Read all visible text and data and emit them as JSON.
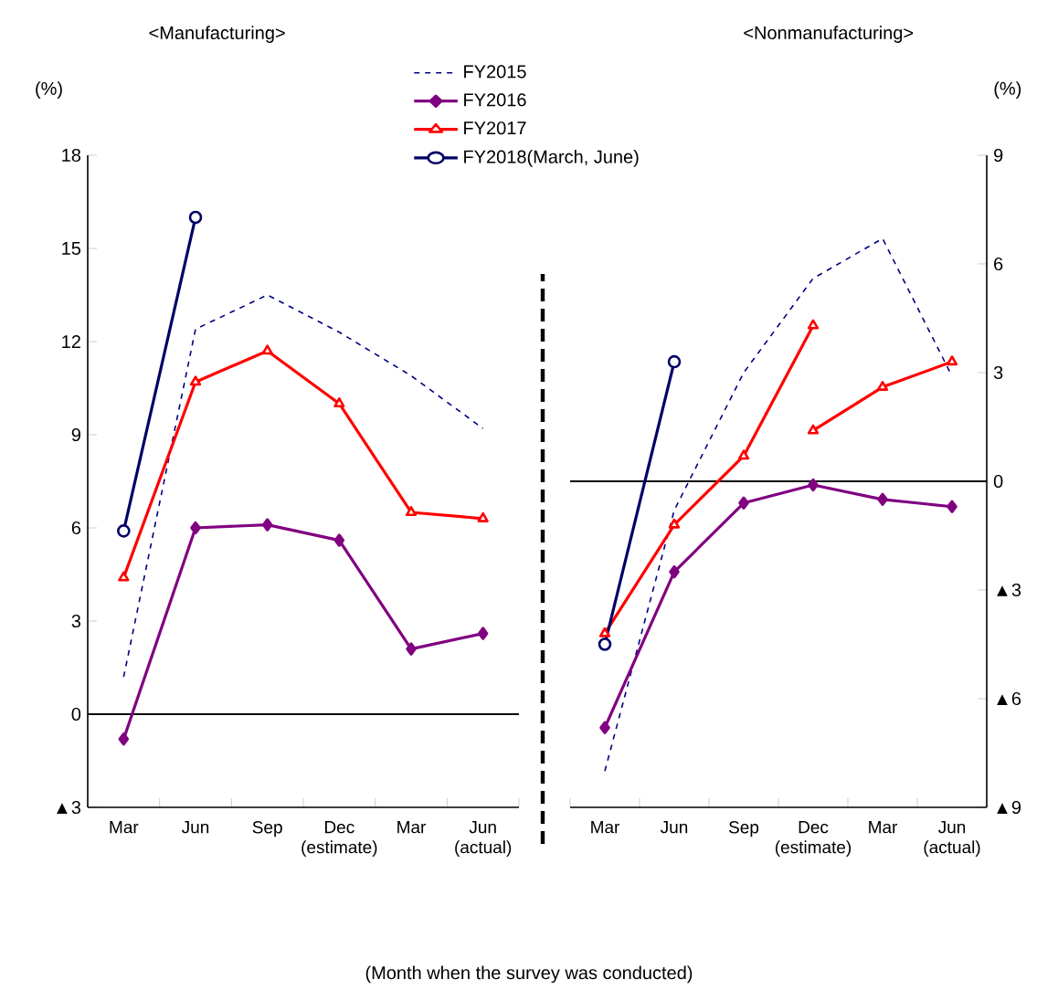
{
  "chart_data": [
    {
      "type": "line",
      "title": "<Manufacturing>",
      "ylabel": "(%)",
      "categories": [
        "Mar",
        "Jun",
        "Sep",
        "Dec (estimate)",
        "Mar",
        "Jun (actual)"
      ],
      "series": [
        {
          "name": "FY2015",
          "color": "#000080",
          "line_style": "dashed",
          "marker": "none",
          "values": [
            1.2,
            12.4,
            13.5,
            12.3,
            10.9,
            9.2
          ]
        },
        {
          "name": "FY2016",
          "color": "#800080",
          "line_style": "solid",
          "marker": "diamond",
          "values": [
            -0.8,
            6.0,
            6.1,
            5.6,
            2.1,
            2.6
          ]
        },
        {
          "name": "FY2017",
          "color": "#ff0000",
          "line_style": "solid",
          "marker": "triangle",
          "values": [
            4.4,
            10.7,
            11.7,
            10.0,
            6.5,
            6.3
          ]
        },
        {
          "name": "FY2018(March, June)",
          "color": "#000066",
          "line_style": "solid",
          "marker": "circle",
          "values": [
            5.9,
            16.0,
            null,
            null,
            null,
            null
          ]
        }
      ],
      "ylim": [
        -3,
        18
      ],
      "yticks": [
        {
          "value": -3,
          "label": "▲3"
        },
        0,
        3,
        6,
        9,
        12,
        15,
        18
      ],
      "ref_lines": [
        {
          "axis": "y",
          "value": 0,
          "color": "#000000"
        }
      ],
      "legend": "top right",
      "grid": false,
      "annotations": [
        "(Month when the survey was conducted)"
      ]
    },
    {
      "type": "line",
      "title": "<Nonmanufacturing>",
      "ylabel": "(%)",
      "categories": [
        "Mar",
        "Jun",
        "Sep",
        "Dec (estimate)",
        "Mar",
        "Jun (actual)"
      ],
      "series": [
        {
          "color": "#000080",
          "line_style": "dashed",
          "marker": "none",
          "values": [
            -8.0,
            -0.8,
            3.0,
            5.6,
            6.7,
            2.9
          ]
        },
        {
          "color": "#800080",
          "line_style": "solid",
          "marker": "diamond",
          "values": [
            -6.8,
            -2.5,
            -0.6,
            -0.1,
            -0.5,
            -0.7
          ]
        },
        {
          "color": "#ff0000",
          "line_style": "solid",
          "marker": "triangle",
          "values": [
            -4.2,
            -1.2,
            0.7,
            4.3,
            null,
            null
          ]
        },
        {
          "color": "#ff0000",
          "line_style": "solid",
          "marker": "triangle",
          "values": [
            null,
            null,
            null,
            1.4,
            2.6,
            3.3
          ]
        },
        {
          "color": "#000066",
          "line_style": "solid",
          "marker": "circle",
          "values": [
            -4.5,
            3.3,
            null,
            null,
            null,
            null
          ]
        }
      ],
      "ylim": [
        -9,
        9
      ],
      "yticks": [
        {
          "value": -9,
          "label": "▲9"
        },
        {
          "value": -6,
          "label": "▲6"
        },
        {
          "value": -3,
          "label": "▲3"
        },
        0,
        3,
        6,
        9
      ],
      "ref_lines": [
        {
          "axis": "y",
          "value": 0,
          "color": "#000000"
        }
      ],
      "legend": false,
      "grid": false
    }
  ]
}
